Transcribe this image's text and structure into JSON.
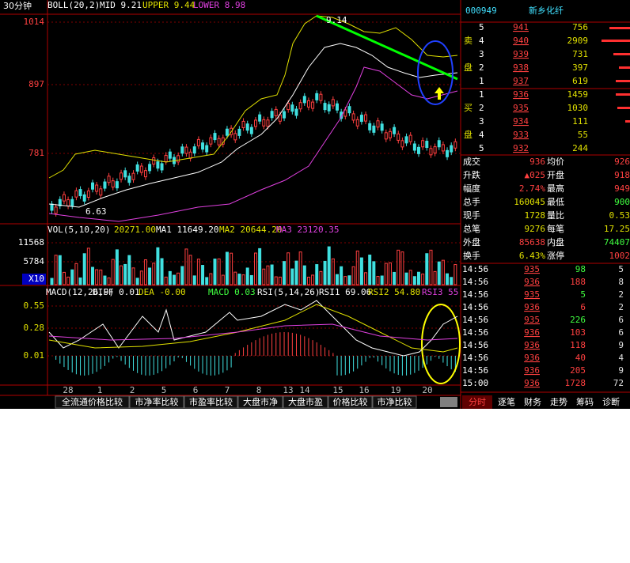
{
  "period": "30分钟",
  "boll_header": [
    "BOLL(20,2)",
    "MID 9.21",
    "UPPER 9.44",
    "LOWER 8.98"
  ],
  "price_axis": [
    "1014",
    "897",
    "781"
  ],
  "annotations": [
    "9.14",
    "6.63"
  ],
  "vol_header": [
    "VOL(5,10,20)",
    "20271.00",
    "MA1 11649.20",
    "MA2 20644.20",
    "MA3 23120.35"
  ],
  "vol_axis": [
    "11568",
    "5784",
    "X10"
  ],
  "macd_header": [
    "MACD(12,26,9)",
    "DIFF 0.01",
    "DEA -0.00",
    "MACD 0.03",
    "RSI(5,14,26)",
    "RSI1 69.06",
    "RSI2 54.80",
    "RSI3 55"
  ],
  "macd_axis": [
    "0.55",
    "0.28",
    "0.01"
  ],
  "x_labels": [
    "28",
    "1",
    "2",
    "5",
    "6",
    "7",
    "8",
    "13",
    "14",
    "15",
    "16",
    "19",
    "20"
  ],
  "tabs": [
    "全流通价格比较",
    "市净率比较",
    "市盈率比较",
    "大盘市净",
    "大盘市盈",
    "价格比较",
    "市净比较"
  ],
  "quote": {
    "code": "000949",
    "name": "新乡化纤",
    "sell_label": [
      "卖",
      "盘"
    ],
    "buy_label": [
      "买",
      "盘"
    ],
    "asks": [
      [
        "5",
        "941",
        "756"
      ],
      [
        "4",
        "940",
        "2909"
      ],
      [
        "3",
        "939",
        "731"
      ],
      [
        "2",
        "938",
        "397"
      ],
      [
        "1",
        "937",
        "619"
      ]
    ],
    "bids": [
      [
        "1",
        "936",
        "1459"
      ],
      [
        "2",
        "935",
        "1030"
      ],
      [
        "3",
        "934",
        "111"
      ],
      [
        "4",
        "933",
        "55"
      ],
      [
        "5",
        "932",
        "244"
      ]
    ],
    "stats": [
      [
        "成交",
        "936",
        "均价",
        "926"
      ],
      [
        "升跌",
        "▲025",
        "开盘",
        "918"
      ],
      [
        "幅度",
        "2.74%",
        "最高",
        "949"
      ],
      [
        "总手",
        "160045",
        "最低",
        "900"
      ],
      [
        "现手",
        "1728",
        "量比",
        "0.53"
      ],
      [
        "总笔",
        "9276",
        "每笔",
        "17.25"
      ],
      [
        "外盘",
        "85638",
        "内盘",
        "74407"
      ],
      [
        "换手",
        "6.43%",
        "涨停",
        "1002"
      ]
    ],
    "ticks": [
      [
        "14:56",
        "935",
        "98",
        "5"
      ],
      [
        "14:56",
        "936",
        "188",
        "8"
      ],
      [
        "14:56",
        "935",
        "5",
        "2"
      ],
      [
        "14:56",
        "936",
        "6",
        "2"
      ],
      [
        "14:56",
        "935",
        "226",
        "6"
      ],
      [
        "14:56",
        "936",
        "103",
        "6"
      ],
      [
        "14:56",
        "936",
        "118",
        "9"
      ],
      [
        "14:56",
        "936",
        "40",
        "4"
      ],
      [
        "14:56",
        "936",
        "205",
        "9"
      ],
      [
        "15:00",
        "936",
        "1728",
        "72"
      ]
    ],
    "tabs": [
      "分时",
      "逐笔",
      "财务",
      "走势",
      "筹码",
      "诊断"
    ]
  }
}
